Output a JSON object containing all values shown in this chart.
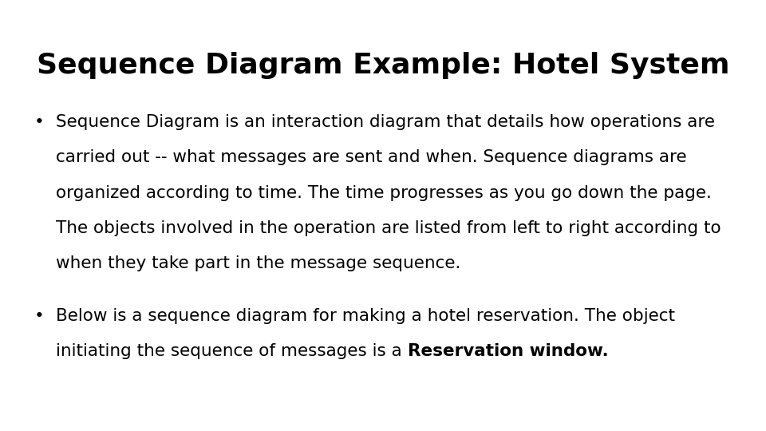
{
  "title": "Sequence Diagram Example: Hotel System",
  "title_fontsize": 26,
  "title_fontweight": "bold",
  "background_color": "#ffffff",
  "text_color": "#000000",
  "bullet1_lines": [
    "Sequence Diagram is an interaction diagram that details how operations are",
    "carried out -- what messages are sent and when. Sequence diagrams are",
    "organized according to time. The time progresses as you go down the page.",
    "The objects involved in the operation are listed from left to right according to",
    "when they take part in the message sequence."
  ],
  "bullet2_line1": "Below is a sequence diagram for making a hotel reservation. The object",
  "bullet2_line2_normal": "initiating the sequence of messages is a ",
  "bullet2_line2_bold": "Reservation window.",
  "body_fontsize": 15.5,
  "font_family": "DejaVu Sans"
}
